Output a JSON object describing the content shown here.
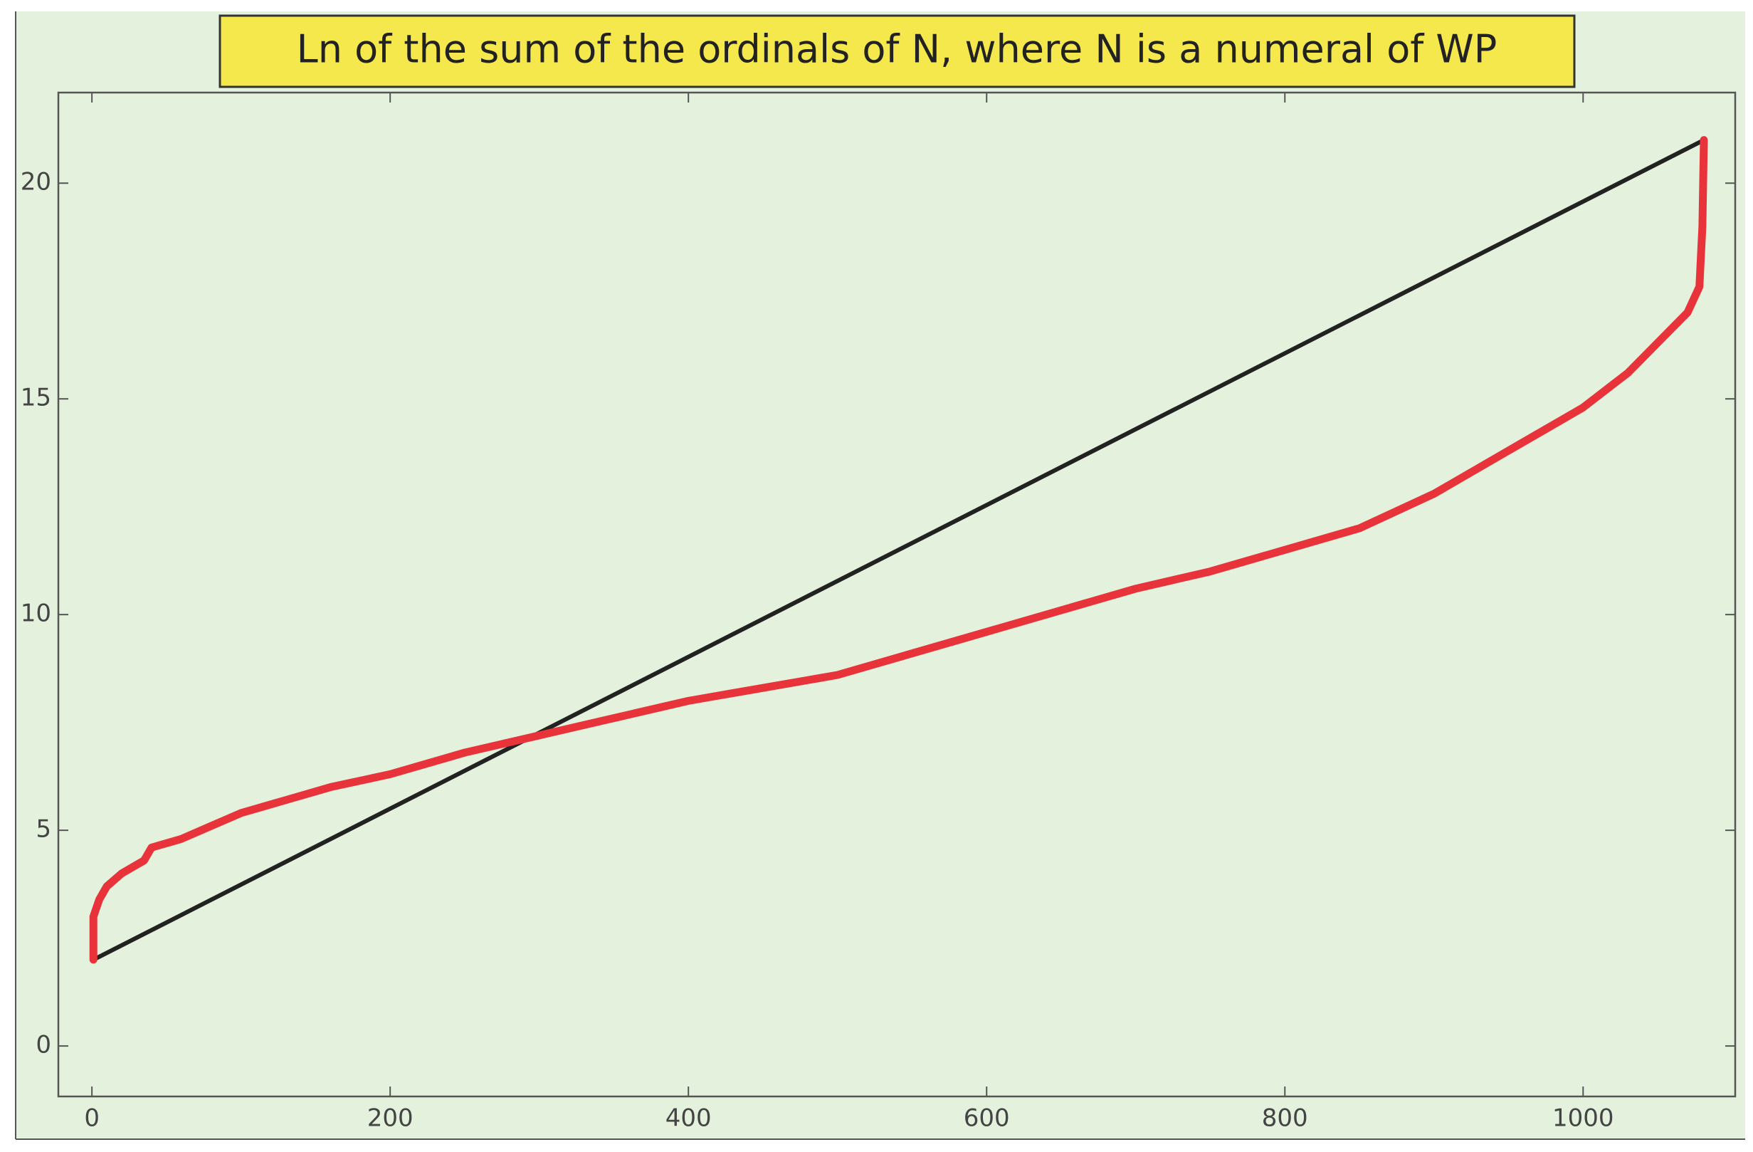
{
  "chart_data": {
    "type": "line",
    "title": "Ln of the sum of the ordinals of N, where N is a numeral of WP",
    "xlim": [
      -22.5,
      1102
    ],
    "ylim": [
      -1.17,
      22.1
    ],
    "xticks": [
      0,
      200,
      400,
      600,
      800,
      1000
    ],
    "yticks": [
      0,
      5,
      10,
      15,
      20
    ],
    "series": [
      {
        "color": "#222222",
        "x": [
          1,
          1081
        ],
        "values": [
          2,
          21
        ]
      },
      {
        "color": "#e8333a",
        "x": [
          1,
          1,
          5,
          10,
          20,
          35,
          40,
          60,
          80,
          100,
          130,
          160,
          200,
          250,
          300,
          350,
          400,
          450,
          500,
          550,
          600,
          650,
          700,
          750,
          800,
          850,
          900,
          950,
          1000,
          1030,
          1050,
          1070,
          1078,
          1080,
          1081
        ],
        "values": [
          2.0,
          3.0,
          3.4,
          3.7,
          4.0,
          4.3,
          4.6,
          4.8,
          5.1,
          5.4,
          5.7,
          6.0,
          6.3,
          6.8,
          7.2,
          7.6,
          8.0,
          8.3,
          8.6,
          9.1,
          9.6,
          10.1,
          10.6,
          11.0,
          11.5,
          12.0,
          12.8,
          13.8,
          14.8,
          15.6,
          16.3,
          17.0,
          17.6,
          19.0,
          21.0
        ]
      }
    ]
  }
}
